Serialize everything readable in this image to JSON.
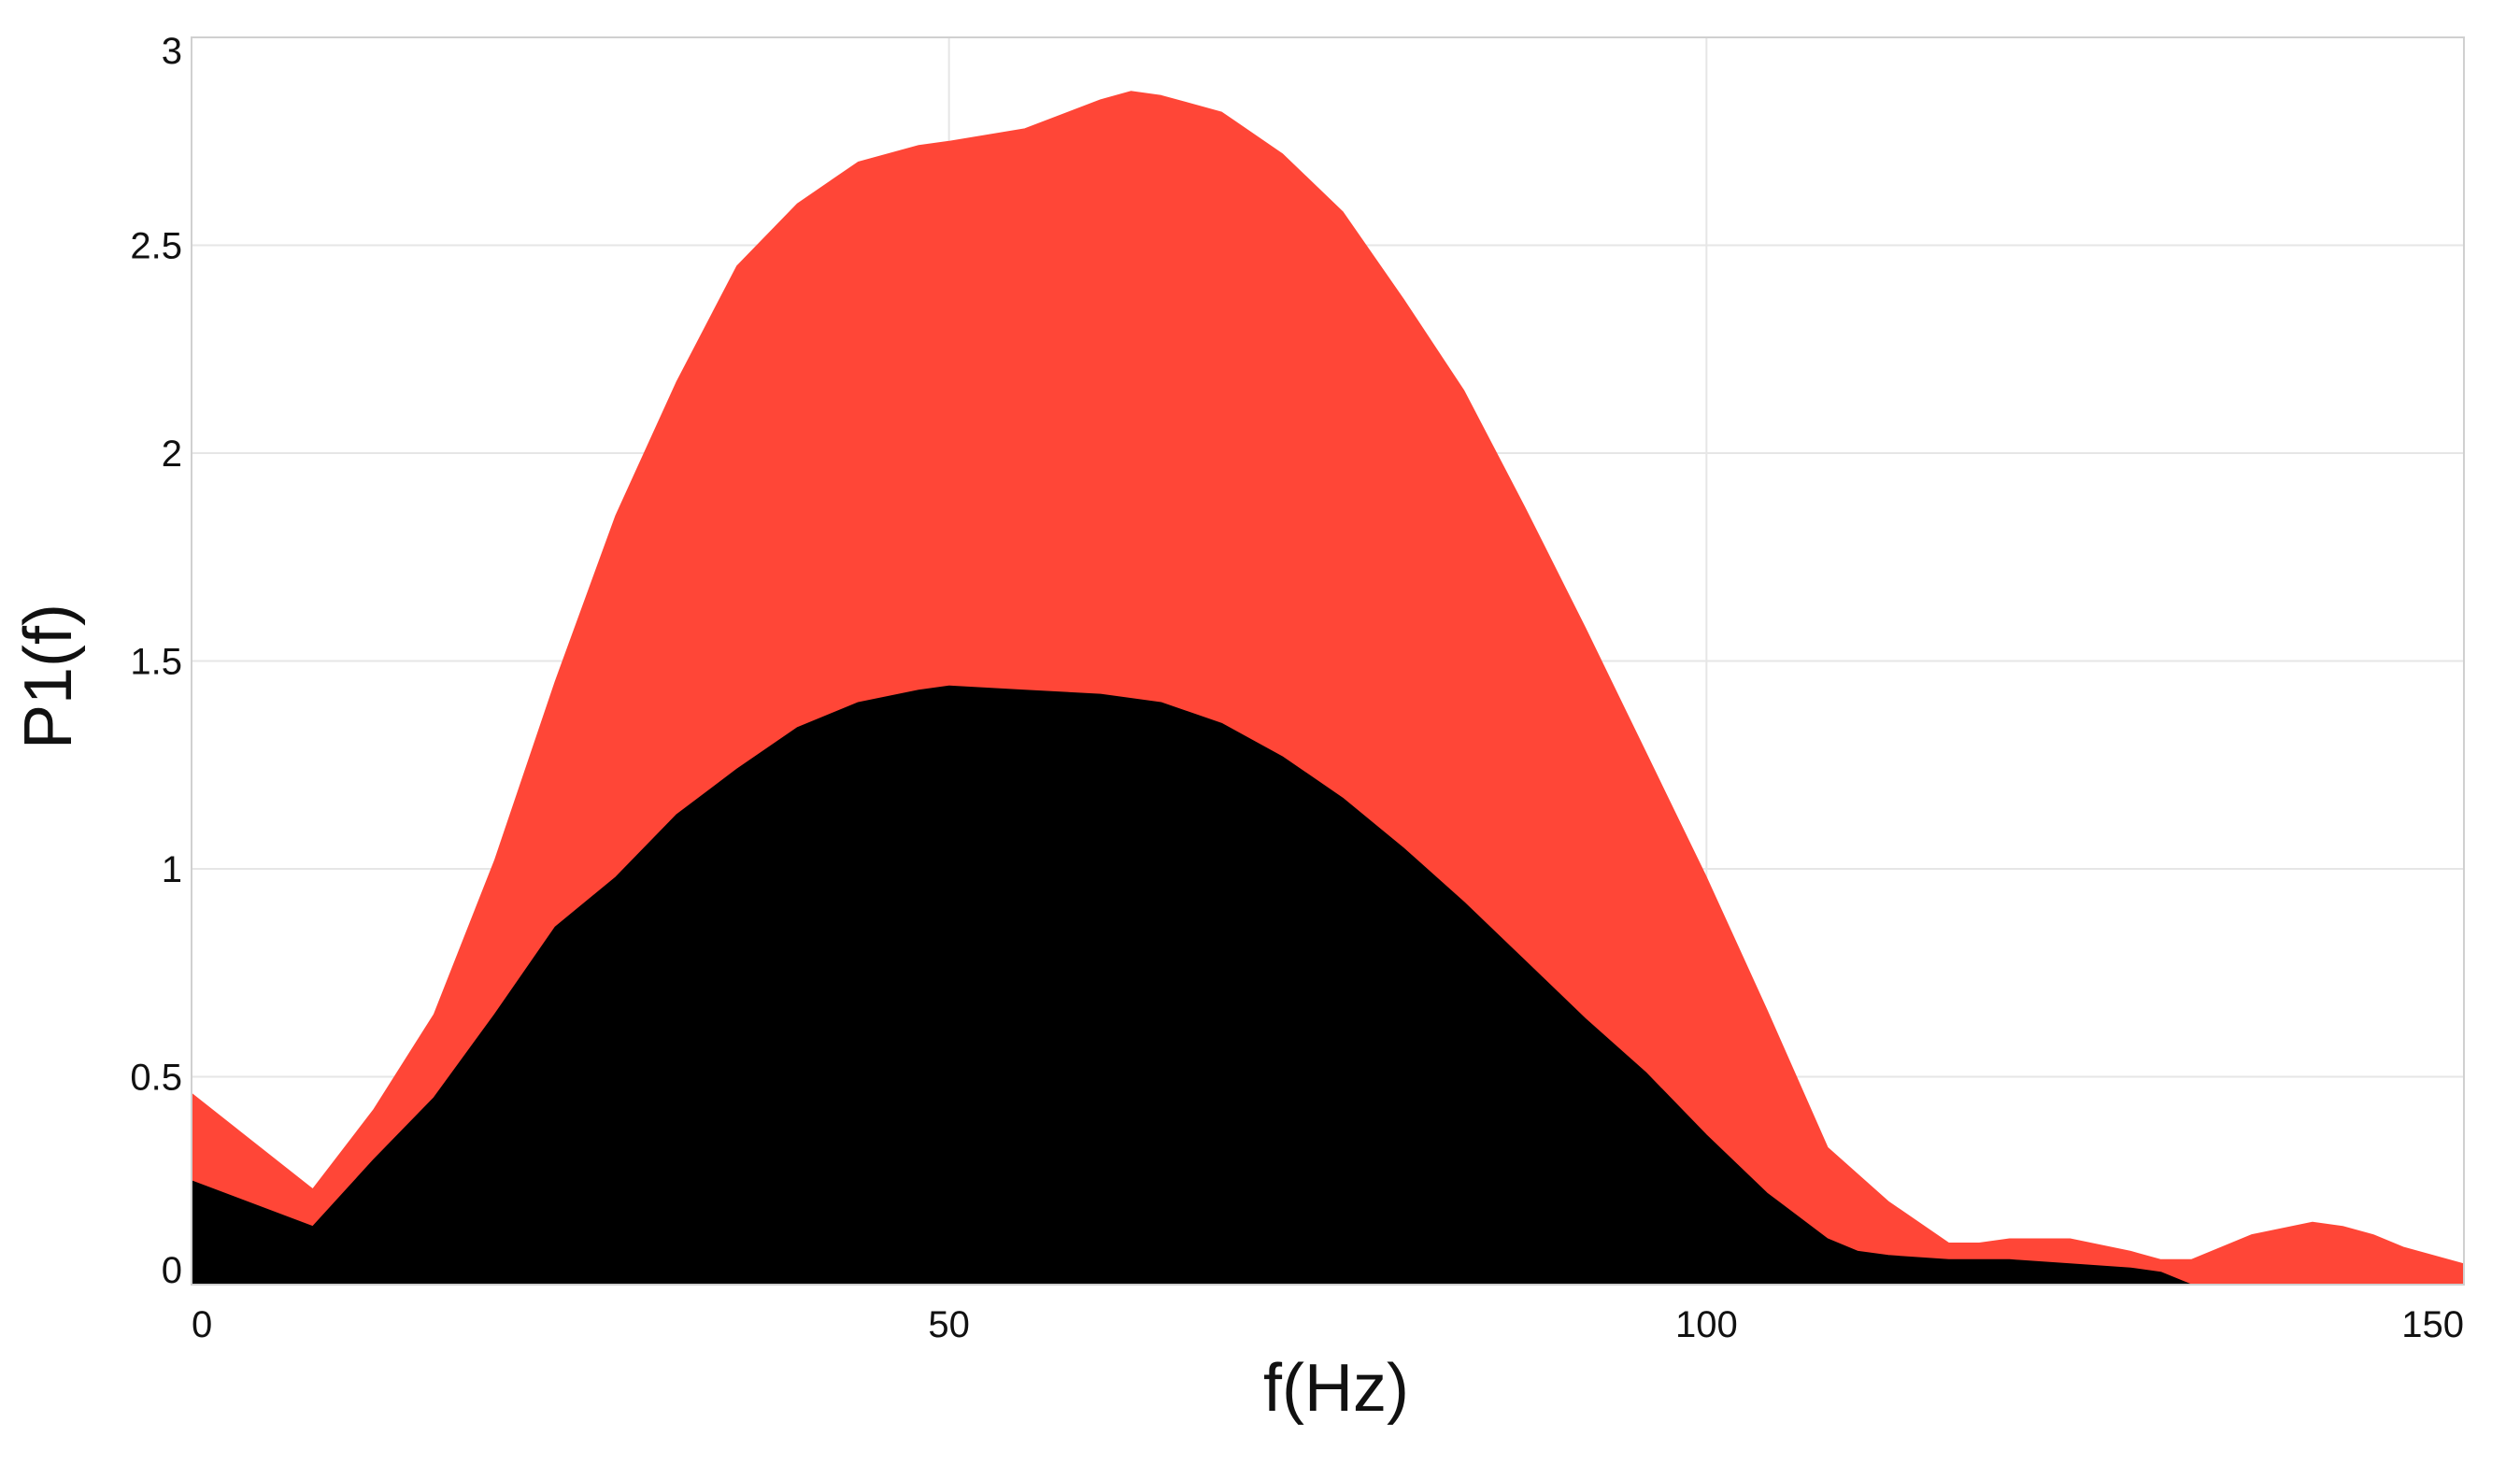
{
  "chart_data": {
    "type": "area",
    "title": "",
    "xlabel": "f(Hz)",
    "ylabel": "P1(f)",
    "xlim": [
      0,
      150
    ],
    "ylim": [
      0,
      3
    ],
    "grid": true,
    "x_ticks": [
      0,
      50,
      100,
      150
    ],
    "x_tick_labels": [
      "0",
      "50",
      "100",
      "150"
    ],
    "y_ticks": [
      0,
      0.5,
      1,
      1.5,
      2,
      2.5,
      3
    ],
    "y_tick_labels": [
      "0",
      "0.5",
      "1",
      "1.5",
      "2",
      "2.5",
      "3"
    ],
    "series": [
      {
        "color": "#ff4637",
        "x": [
          0,
          8,
          12,
          16,
          20,
          24,
          28,
          32,
          36,
          40,
          44,
          48,
          50,
          55,
          60,
          62,
          64,
          68,
          72,
          76,
          80,
          84,
          88,
          92,
          96,
          100,
          104,
          108,
          112,
          116,
          118,
          120,
          124,
          128,
          130,
          132,
          134,
          136,
          140,
          142,
          144,
          146,
          150
        ],
        "y": [
          0.46,
          0.23,
          0.42,
          0.65,
          1.02,
          1.45,
          1.85,
          2.17,
          2.45,
          2.6,
          2.7,
          2.74,
          2.75,
          2.78,
          2.85,
          2.87,
          2.86,
          2.82,
          2.72,
          2.58,
          2.37,
          2.15,
          1.87,
          1.58,
          1.28,
          0.98,
          0.66,
          0.33,
          0.2,
          0.1,
          0.1,
          0.11,
          0.11,
          0.08,
          0.06,
          0.06,
          0.09,
          0.12,
          0.15,
          0.14,
          0.12,
          0.09,
          0.05
        ]
      },
      {
        "color": "#000000",
        "x": [
          0,
          8,
          12,
          16,
          20,
          24,
          28,
          32,
          36,
          40,
          44,
          48,
          50,
          55,
          60,
          64,
          68,
          72,
          76,
          80,
          84,
          88,
          92,
          96,
          100,
          104,
          108,
          110,
          112,
          116,
          120,
          124,
          128,
          130,
          132
        ],
        "y": [
          0.25,
          0.14,
          0.3,
          0.45,
          0.65,
          0.86,
          0.98,
          1.13,
          1.24,
          1.34,
          1.4,
          1.43,
          1.44,
          1.43,
          1.42,
          1.4,
          1.35,
          1.27,
          1.17,
          1.05,
          0.92,
          0.78,
          0.64,
          0.51,
          0.36,
          0.22,
          0.11,
          0.08,
          0.07,
          0.06,
          0.06,
          0.05,
          0.04,
          0.03,
          0.0
        ]
      }
    ]
  }
}
